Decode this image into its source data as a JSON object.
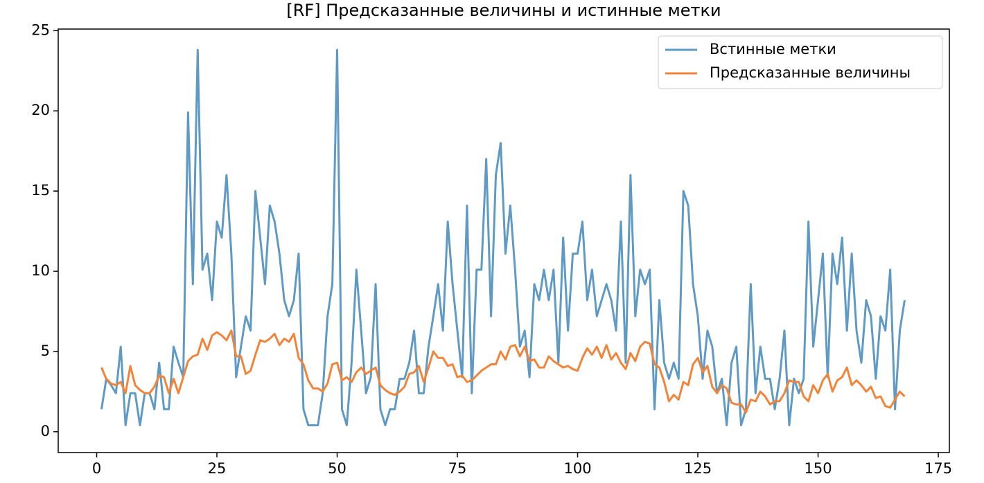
{
  "chart_data": {
    "type": "line",
    "title": "[RF] Предсказанные величины и истинные метки",
    "x": [
      1,
      2,
      3,
      4,
      5,
      6,
      7,
      8,
      9,
      10,
      11,
      12,
      13,
      14,
      15,
      16,
      17,
      18,
      19,
      20,
      21,
      22,
      23,
      24,
      25,
      26,
      27,
      28,
      29,
      30,
      31,
      32,
      33,
      34,
      35,
      36,
      37,
      38,
      39,
      40,
      41,
      42,
      43,
      44,
      45,
      46,
      47,
      48,
      49,
      50,
      51,
      52,
      53,
      54,
      55,
      56,
      57,
      58,
      59,
      60,
      61,
      62,
      63,
      64,
      65,
      66,
      67,
      68,
      69,
      70,
      71,
      72,
      73,
      74,
      75,
      76,
      77,
      78,
      79,
      80,
      81,
      82,
      83,
      84,
      85,
      86,
      87,
      88,
      89,
      90,
      91,
      92,
      93,
      94,
      95,
      96,
      97,
      98,
      99,
      100,
      101,
      102,
      103,
      104,
      105,
      106,
      107,
      108,
      109,
      110,
      111,
      112,
      113,
      114,
      115,
      116,
      117,
      118,
      119,
      120,
      121,
      122,
      123,
      124,
      125,
      126,
      127,
      128,
      129,
      130,
      131,
      132,
      133,
      134,
      135,
      136,
      137,
      138,
      139,
      140,
      141,
      142,
      143,
      144,
      145,
      146,
      147,
      148,
      149,
      150,
      151,
      152,
      153,
      154,
      155,
      156,
      157,
      158,
      159,
      160,
      161,
      162,
      163,
      164,
      165,
      166,
      167,
      168
    ],
    "series": [
      {
        "name": "Встинные метки",
        "color": "#5f9ac4",
        "values": [
          1.4,
          3.3,
          2.9,
          2.4,
          5.3,
          0.4,
          2.4,
          2.4,
          0.4,
          2.4,
          2.4,
          1.4,
          4.3,
          1.4,
          1.4,
          5.3,
          4.3,
          3.4,
          19.9,
          9.2,
          23.8,
          10.1,
          11.1,
          8.2,
          13.1,
          12.1,
          16.0,
          11.1,
          3.4,
          5.3,
          7.2,
          6.3,
          15.0,
          12.1,
          9.2,
          14.1,
          13.1,
          11.1,
          8.2,
          7.2,
          8.2,
          11.1,
          1.4,
          0.4,
          0.4,
          0.4,
          2.4,
          7.2,
          9.2,
          23.8,
          1.4,
          0.4,
          4.3,
          10.1,
          6.3,
          2.4,
          3.4,
          9.2,
          1.4,
          0.4,
          1.4,
          1.4,
          3.3,
          3.3,
          4.3,
          6.3,
          2.4,
          2.4,
          5.3,
          7.2,
          9.2,
          6.3,
          13.1,
          9.2,
          6.3,
          3.4,
          14.1,
          2.4,
          10.1,
          10.1,
          17.0,
          7.2,
          16.0,
          18.0,
          11.1,
          14.1,
          10.1,
          5.3,
          6.3,
          3.4,
          9.2,
          8.2,
          10.1,
          8.2,
          10.1,
          4.3,
          12.1,
          6.3,
          11.1,
          11.1,
          13.1,
          8.2,
          10.1,
          7.2,
          8.2,
          9.2,
          8.2,
          6.3,
          13.1,
          4.3,
          16.0,
          7.2,
          10.1,
          9.2,
          10.1,
          1.4,
          8.2,
          4.3,
          3.3,
          4.3,
          3.3,
          15.0,
          14.1,
          9.2,
          7.2,
          3.3,
          6.3,
          5.3,
          2.4,
          3.3,
          0.4,
          4.3,
          5.3,
          0.4,
          1.4,
          9.2,
          2.4,
          5.3,
          3.3,
          3.3,
          1.4,
          3.3,
          6.3,
          0.4,
          3.3,
          2.4,
          3.3,
          13.1,
          5.3,
          8.2,
          11.1,
          3.4,
          11.1,
          9.2,
          12.1,
          6.3,
          11.1,
          6.3,
          4.3,
          8.2,
          7.2,
          3.3,
          7.2,
          6.3,
          10.1,
          1.4,
          6.3,
          8.2
        ]
      },
      {
        "name": "Предсказанные величины",
        "color": "#f0843a",
        "values": [
          4.0,
          3.3,
          3.0,
          2.9,
          3.1,
          2.4,
          4.1,
          2.9,
          2.6,
          2.4,
          2.4,
          2.8,
          3.5,
          3.4,
          2.4,
          3.3,
          2.4,
          3.4,
          4.4,
          4.7,
          4.8,
          5.8,
          5.1,
          6.0,
          6.2,
          6.0,
          5.7,
          6.3,
          4.7,
          4.7,
          3.6,
          3.8,
          4.8,
          5.7,
          5.6,
          5.8,
          6.1,
          5.4,
          5.8,
          5.6,
          6.1,
          4.6,
          4.2,
          3.2,
          2.7,
          2.7,
          2.5,
          3.0,
          4.2,
          4.3,
          3.2,
          3.4,
          3.1,
          3.7,
          4.0,
          3.6,
          3.8,
          4.0,
          2.9,
          2.6,
          2.4,
          2.3,
          2.5,
          2.8,
          3.6,
          3.7,
          4.1,
          3.1,
          4.0,
          5.0,
          4.6,
          4.6,
          4.1,
          4.2,
          3.4,
          3.5,
          3.1,
          3.2,
          3.5,
          3.8,
          4.0,
          4.2,
          4.2,
          5.0,
          4.5,
          5.3,
          5.4,
          4.7,
          5.3,
          4.4,
          4.5,
          4.0,
          4.0,
          4.7,
          4.4,
          4.2,
          4.0,
          4.1,
          3.9,
          3.8,
          4.6,
          5.2,
          4.8,
          5.3,
          4.6,
          5.4,
          4.5,
          4.9,
          4.3,
          3.9,
          4.9,
          4.4,
          5.3,
          5.6,
          5.5,
          4.2,
          4.0,
          3.1,
          1.9,
          2.3,
          2.0,
          3.1,
          2.9,
          4.2,
          4.6,
          3.7,
          4.1,
          2.8,
          2.4,
          2.9,
          2.7,
          1.8,
          1.7,
          1.7,
          1.2,
          2.0,
          1.9,
          2.5,
          2.2,
          1.7,
          1.9,
          1.9,
          2.4,
          3.2,
          3.1,
          3.1,
          2.2,
          1.9,
          2.9,
          2.4,
          3.2,
          3.6,
          2.5,
          3.2,
          3.4,
          4.0,
          2.9,
          3.2,
          2.9,
          2.5,
          2.8,
          2.1,
          2.2,
          1.6,
          1.5,
          2.0,
          2.5,
          2.2
        ]
      }
    ],
    "xlim": [
      -8,
      177.3
    ],
    "ylim": [
      -1.3,
      25.1
    ],
    "xticks": [
      0,
      25,
      50,
      75,
      100,
      125,
      150,
      175
    ],
    "yticks": [
      0,
      5,
      10,
      15,
      20,
      25
    ],
    "legend": "upper right"
  }
}
